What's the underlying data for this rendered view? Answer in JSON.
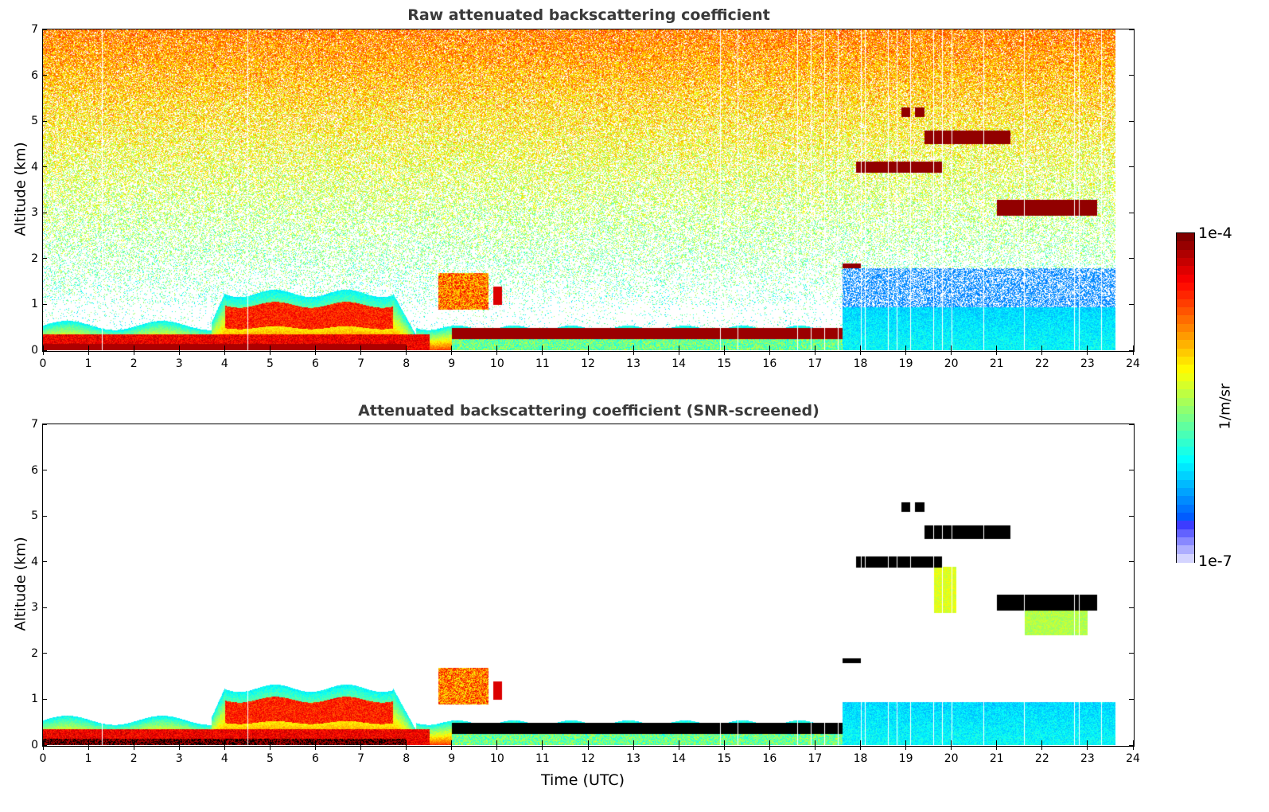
{
  "chart_data": [
    {
      "type": "heatmap",
      "title": "Raw attenuated backscattering coefficient",
      "xlabel": "",
      "ylabel": "Altitude (km)",
      "xlim": [
        0,
        24
      ],
      "ylim": [
        0,
        7
      ],
      "xticks": [
        "0",
        "1",
        "2",
        "3",
        "4",
        "5",
        "6",
        "7",
        "8",
        "9",
        "10",
        "11",
        "12",
        "13",
        "14",
        "15",
        "16",
        "17",
        "18",
        "19",
        "20",
        "21",
        "22",
        "23",
        "24"
      ],
      "yticks": [
        "0",
        "1",
        "2",
        "3",
        "4",
        "5",
        "6",
        "7"
      ],
      "data_end_time": 23.6,
      "features": [
        {
          "name": "boundary layer aerosol (near-surface)",
          "x": [
            0,
            17.6
          ],
          "y": [
            0,
            0.6
          ],
          "intensity": "high"
        },
        {
          "name": "residual layer / convective clouds",
          "x": [
            3.7,
            8.0
          ],
          "y": [
            0,
            1.35
          ],
          "intensity": "medium-high"
        },
        {
          "name": "elevated cloud patch",
          "x": [
            8.7,
            10.1
          ],
          "y": [
            0.8,
            1.7
          ],
          "intensity": "high"
        },
        {
          "name": "mid-level cloud",
          "x": [
            17.9,
            19.8
          ],
          "y": [
            3.9,
            4.1
          ],
          "intensity": "very high"
        },
        {
          "name": "mid-level cloud",
          "x": [
            19.4,
            21.3
          ],
          "y": [
            4.5,
            4.8
          ],
          "intensity": "very high"
        },
        {
          "name": "small cloud",
          "x": [
            18.9,
            19.4
          ],
          "y": [
            5.1,
            5.3
          ],
          "intensity": "very high"
        },
        {
          "name": "mid-level cloud",
          "x": [
            21.0,
            23.2
          ],
          "y": [
            2.95,
            3.3
          ],
          "intensity": "very high"
        },
        {
          "name": "nocturnal boundary layer",
          "x": [
            17.6,
            23.6
          ],
          "y": [
            0,
            0.95
          ],
          "intensity": "low"
        },
        {
          "name": "background noise (upper levels)",
          "x": [
            0,
            23.6
          ],
          "y": [
            2,
            7
          ],
          "intensity": "noise"
        }
      ]
    },
    {
      "type": "heatmap",
      "title": "Attenuated backscattering coefficient (SNR-screened)",
      "xlabel": "Time (UTC)",
      "ylabel": "Altitude (km)",
      "xlim": [
        0,
        24
      ],
      "ylim": [
        0,
        7
      ],
      "xticks": [
        "0",
        "1",
        "2",
        "3",
        "4",
        "5",
        "6",
        "7",
        "8",
        "9",
        "10",
        "11",
        "12",
        "13",
        "14",
        "15",
        "16",
        "17",
        "18",
        "19",
        "20",
        "21",
        "22",
        "23",
        "24"
      ],
      "yticks": [
        "0",
        "1",
        "2",
        "3",
        "4",
        "5",
        "6",
        "7"
      ],
      "data_end_time": 23.6,
      "screened_color": "#000000",
      "features": [
        {
          "name": "boundary layer aerosol (near-surface)",
          "x": [
            0,
            17.6
          ],
          "y": [
            0,
            0.6
          ],
          "intensity": "high"
        },
        {
          "name": "residual layer / convective clouds",
          "x": [
            3.7,
            8.0
          ],
          "y": [
            0,
            1.35
          ],
          "intensity": "medium-high"
        },
        {
          "name": "elevated cloud patch",
          "x": [
            8.7,
            10.1
          ],
          "y": [
            0.8,
            1.7
          ],
          "intensity": "high"
        },
        {
          "name": "mid-level cloud",
          "x": [
            17.9,
            19.8
          ],
          "y": [
            3.9,
            4.1
          ],
          "intensity": "saturated"
        },
        {
          "name": "mid-level cloud",
          "x": [
            19.4,
            21.3
          ],
          "y": [
            4.5,
            4.8
          ],
          "intensity": "saturated"
        },
        {
          "name": "small cloud",
          "x": [
            18.9,
            19.4
          ],
          "y": [
            5.1,
            5.3
          ],
          "intensity": "saturated"
        },
        {
          "name": "mid-level cloud",
          "x": [
            21.0,
            23.2
          ],
          "y": [
            2.95,
            3.3
          ],
          "intensity": "saturated"
        },
        {
          "name": "nocturnal boundary layer",
          "x": [
            17.6,
            23.6
          ],
          "y": [
            0,
            0.95
          ],
          "intensity": "low"
        }
      ]
    }
  ],
  "colorbar": {
    "max_label": "1e-4",
    "min_label": "1e-7",
    "unit": "1/m/sr",
    "scale": "log",
    "colormap": "jet"
  }
}
